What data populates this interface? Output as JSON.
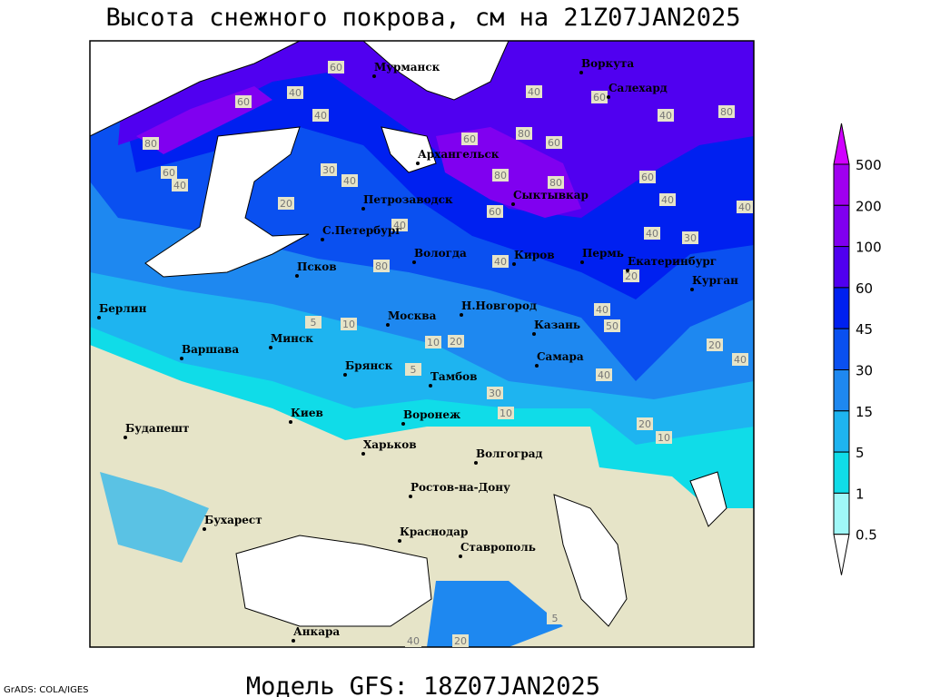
{
  "title": "Высота снежного покрова, см на 21Z07JAN2025",
  "subtitle": "Модель GFS: 18Z07JAN2025",
  "credit": "GrADS: COLA/IGES",
  "colorbar": {
    "levels": [
      500,
      200,
      100,
      60,
      45,
      30,
      15,
      5,
      1,
      0.5
    ],
    "colors": [
      "#d000ff",
      "#a000f0",
      "#8000f0",
      "#5000f0",
      "#0020f0",
      "#0a50f0",
      "#1e88f0",
      "#1eb4f0",
      "#10dce8",
      "#a0f8f8",
      "#ffffff"
    ]
  },
  "cities": [
    "Мурманск",
    "Воркута",
    "Салехард",
    "Архангельск",
    "Петрозаводск",
    "Сыктывкар",
    "С.Петербург",
    "Вологда",
    "Киров",
    "Пермь",
    "Екатеринбург",
    "Курган",
    "Псков",
    "Н.Новгород",
    "Казань",
    "Москва",
    "Берлин",
    "Варшава",
    "Минск",
    "Брянск",
    "Тамбов",
    "Самара",
    "Киев",
    "Воронеж",
    "Харьков",
    "Волгоград",
    "Будапешт",
    "Ростов-на-Дону",
    "Бухарест",
    "Краснодар",
    "Ставрополь",
    "Анкара"
  ],
  "contour_labels": [
    60,
    40,
    60,
    80,
    60,
    40,
    40,
    30,
    20,
    40,
    60,
    80,
    60,
    80,
    80,
    60,
    40,
    80,
    40,
    20,
    40,
    50,
    40,
    20,
    40,
    5,
    10,
    10,
    20,
    30,
    10,
    20,
    10,
    5,
    40,
    60,
    80,
    40,
    60,
    40,
    40,
    30,
    40,
    5,
    40,
    20
  ]
}
